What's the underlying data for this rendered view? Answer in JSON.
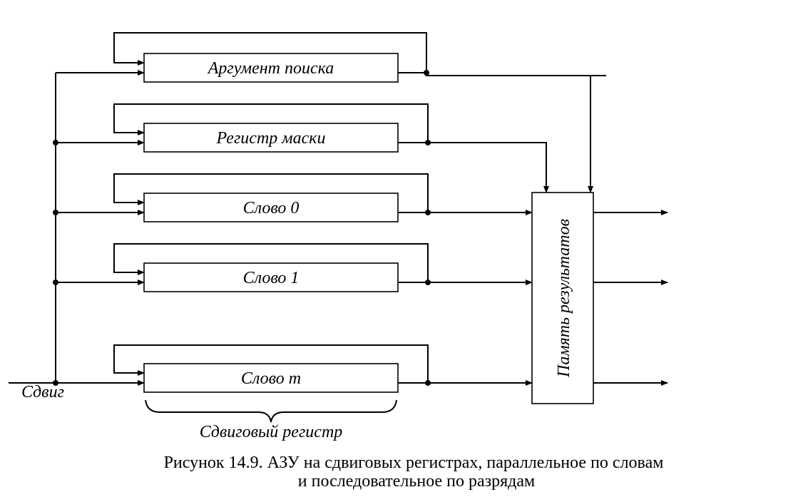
{
  "diagram": {
    "registers": [
      "Аргумент поиска",
      "Регистр маски",
      "Слово 0",
      "Слово 1",
      "Слово m"
    ],
    "memory_label": "Память результатов",
    "shift_label": "Сдвиг",
    "shift_register_label": "Сдвиговый регистр"
  },
  "caption": {
    "line1": "Рисунок 14.9. АЗУ на сдвиговых регистрах, параллельное по словам",
    "line2": "и последовательное по разрядам"
  }
}
